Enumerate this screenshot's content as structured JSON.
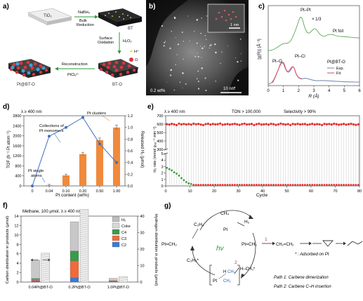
{
  "panels": {
    "a": {
      "label": "a)",
      "tile_top": "TiO₂",
      "tile_bt": "BT",
      "tile_bto": "BT-O",
      "tile_ptbto": "Pt@BT-O",
      "step1_top": "NaBH₄",
      "step1_line1": "Bulk",
      "step1_line2": "Reduction",
      "step2_line1": "Surface",
      "step2_line2": "Oxidation",
      "step2_reagent": "H₂O₂",
      "step3_line1": "Reconstruction",
      "step3_reagent": "PtCl₆²⁻",
      "legend_h": "H⁺",
      "legend_o": "O",
      "legend_pt": "Pt",
      "colors": {
        "h": "#e6e25a",
        "o": "#d9363e",
        "pt": "#3ea0d8",
        "tile_light": "#e3e3e3",
        "tile_dark": "#2b2b2b"
      }
    },
    "b": {
      "label": "b)",
      "wt": "0.2 wt%",
      "scale_main": "10 nm",
      "scale_inset": "1 nm"
    },
    "c": {
      "label": "c)",
      "ylabel": "|χ(R)| (Å⁻³)",
      "xlabel": "R (Å)",
      "xticks": [
        "0",
        "1",
        "2",
        "3",
        "4",
        "5",
        "6"
      ],
      "scale_note": "× 1/3",
      "ptpt": "Pt–Pt",
      "ptcl": "Pt–Cl",
      "pto": "Pt–O",
      "ptfoil": "Pt foil",
      "sample": "Pt@BT-O",
      "legend_exp": "Exp.",
      "legend_fit": "Fit",
      "colors": {
        "foil": "#5aa85a",
        "exp": "#7a8fb0",
        "fit": "#e0576a"
      }
    },
    "d": {
      "label": "d)",
      "condition": "λ ≥ 400 nm",
      "ylabel_left": "TOF (h⁻¹ Pt atom⁻¹)",
      "ylabel_right": "Released H₂ (μmol)",
      "xlabel": "Pt content (wt%)",
      "ann_clusters": "Pt clusters",
      "ann_monomers_1": "Collections of",
      "ann_monomers_2": "Pt monomers",
      "ann_single_1": "Pt single",
      "ann_single_2": "atoms",
      "colors": {
        "bar": "#f08a3c",
        "line": "#3d6fc2"
      }
    },
    "e": {
      "label": "e)",
      "condition": "λ ≥ 400 nm",
      "ton": "TON > 100,000",
      "selectivity": "Selectivity > 99%",
      "ylabel": "H₂ rate (mmol gₜₐₜ⁻¹ min⁻¹)",
      "xlabel": "Cycle",
      "colors": {
        "red": "#e03030",
        "green": "#3c9a3c"
      }
    },
    "f": {
      "label": "f)",
      "condition": "Methane, 100 μmol, λ ≥ 400 nm",
      "ylabel_left": "Carbon distribution in products (μmol)",
      "ylabel_right": "Hydrogen distribution in products (μmol)",
      "legend": [
        "H₂",
        "Coke",
        "C4",
        "C3",
        "C2"
      ],
      "colors": {
        "h2": "#bdbdbd",
        "coke": "#d8d8d8",
        "c4": "#3a9a4a",
        "c3": "#f06a3a",
        "c2": "#3a7cd0",
        "grey": "#c8c8c8"
      }
    },
    "g": {
      "label": "g)",
      "ch4_top": "CH₄",
      "h2": "H₂",
      "pt_arrow": "Pt",
      "hv": "hv",
      "c2h4": "C₂H₄",
      "c2h5": "C₂H₅*",
      "ptch2_left": "Pt=CH₂",
      "ptch2_right": "Pt=CH₂",
      "path_num_1": "1",
      "path_num_2": "2",
      "hch3": "H–CH₃*",
      "ch2ch2": "CH₂=CH₂",
      "adsorbed_note": "* : Adsorbed on Pt",
      "path1": "Path 1: Carbene dimerization",
      "path2": "Path 2: Carbene C–H insertion",
      "colors": {
        "green": "#2a9a3a",
        "red": "#d03030",
        "blue": "#2a5cc0"
      }
    }
  },
  "chart_data": [
    {
      "type": "bar",
      "panel": "d",
      "categories": [
        "0",
        "0.04",
        "0.10",
        "0.20",
        "0.50",
        "1.00"
      ],
      "series": [
        {
          "values": [
            0,
            30,
            420,
            1270,
            1830,
            2330
          ],
          "errors": [
            0,
            30,
            50,
            70,
            80,
            100
          ]
        },
        {
          "values": [
            0,
            0.85,
            1.0,
            1.17,
            0.72,
            0.4
          ]
        }
      ],
      "ylabel": "TOF (h⁻¹ Pt atom⁻¹)",
      "y2label": "Released H₂ (μmol)",
      "xlabel": "Pt content (wt%)",
      "ylim": [
        0,
        2800
      ],
      "y2lim": [
        0,
        1.2
      ],
      "yticks": [
        0,
        400,
        800,
        1200,
        1600,
        2000,
        2400,
        2800
      ],
      "y2ticks": [
        0,
        0.2,
        0.4,
        0.6,
        0.8,
        1.0,
        1.2
      ]
    },
    {
      "type": "scatter",
      "panel": "e",
      "x": [
        1,
        2,
        3,
        4,
        5,
        6,
        7,
        8,
        9,
        10,
        11,
        12,
        13,
        14,
        15,
        16,
        17,
        18,
        19,
        20,
        21,
        22,
        23,
        24,
        25,
        26,
        27,
        28,
        29,
        30,
        31,
        32,
        33,
        34,
        35,
        36,
        37,
        38,
        39,
        40,
        41,
        42,
        43,
        44,
        45,
        46,
        47,
        48,
        49,
        50,
        51,
        52,
        53,
        54,
        55,
        56,
        57,
        58,
        59,
        60,
        61,
        62,
        63,
        64,
        65,
        66,
        67,
        68,
        69,
        70,
        71,
        72,
        73,
        74,
        75,
        76,
        77,
        78,
        79,
        80
      ],
      "series": [
        {
          "name": "",
          "values": [
            600,
            596,
            604,
            598,
            590,
            606,
            598,
            603,
            597,
            601,
            595,
            606,
            599,
            603,
            596,
            590,
            601,
            605,
            596,
            602,
            598,
            600,
            607,
            594,
            598,
            602,
            596,
            600,
            604,
            598,
            592,
            601,
            606,
            597,
            599,
            603,
            590,
            600,
            605,
            596,
            598,
            601,
            595,
            604,
            600,
            592,
            598,
            606,
            600,
            596,
            601,
            590,
            603,
            598,
            604,
            597,
            600,
            602,
            593,
            598,
            604,
            596,
            601,
            598,
            590,
            603,
            599,
            602,
            596,
            605,
            600,
            594,
            598,
            603,
            595,
            600,
            604,
            598,
            592,
            598
          ]
        },
        {
          "name": "",
          "values": [
            2.8,
            2.6,
            2.4,
            2.1,
            1.9,
            1.6,
            1.2,
            0.9,
            0.6,
            0.4,
            0.3,
            0,
            0,
            0,
            0,
            0,
            0,
            0,
            0,
            0,
            0,
            0,
            0,
            0,
            0,
            0,
            0,
            0,
            0,
            0,
            0,
            0,
            0,
            0,
            0,
            0,
            0,
            0,
            0,
            0,
            0,
            0,
            0,
            0,
            0,
            0,
            0,
            0,
            0,
            0,
            0,
            0,
            0,
            0,
            0,
            0,
            0,
            0,
            0,
            0,
            0,
            0,
            0,
            0,
            0,
            0,
            0,
            0,
            0,
            0,
            0,
            0,
            0,
            0,
            0,
            0,
            0,
            0,
            0,
            0
          ]
        }
      ],
      "ylabel": "H₂ rate (mmol gₜₐₜ⁻¹ min⁻¹)",
      "xlabel": "Cycle",
      "ylim_upper": [
        300,
        700
      ],
      "ylim_lower": [
        0,
        5
      ],
      "yticks_upper": [
        300,
        400,
        500,
        600,
        700
      ],
      "yticks_lower": [
        0,
        1,
        2,
        3,
        4,
        5
      ],
      "xticks": [
        0,
        10,
        20,
        30,
        40,
        50,
        60,
        70,
        80
      ]
    },
    {
      "type": "bar",
      "panel": "f",
      "categories": [
        "0.04Pt@BT-O",
        "0.2Pt@BT-O",
        "1.0Pt@BT-O"
      ],
      "series": [
        {
          "name": "C2",
          "values": [
            0.3,
            0.9,
            0.1
          ]
        },
        {
          "name": "C3",
          "values": [
            0.35,
            3.6,
            0.15
          ]
        },
        {
          "name": "C4",
          "values": [
            0.1,
            2.1,
            0.05
          ]
        },
        {
          "name": "Coke",
          "values": [
            3.9,
            6.2,
            0.5
          ]
        },
        {
          "name": "H₂",
          "values": [
            17.5,
            44,
            3.3
          ]
        }
      ],
      "ylabel": "Carbon distribution in products (μmol)",
      "y2label": "Hydrogen distribution in products (μmol)",
      "ylim": [
        0,
        14
      ],
      "y2lim": [
        0,
        40
      ],
      "yticks": [
        0,
        2,
        4,
        6,
        8,
        10,
        12,
        14
      ],
      "y2ticks": [
        0,
        10,
        20,
        30,
        40
      ]
    }
  ]
}
